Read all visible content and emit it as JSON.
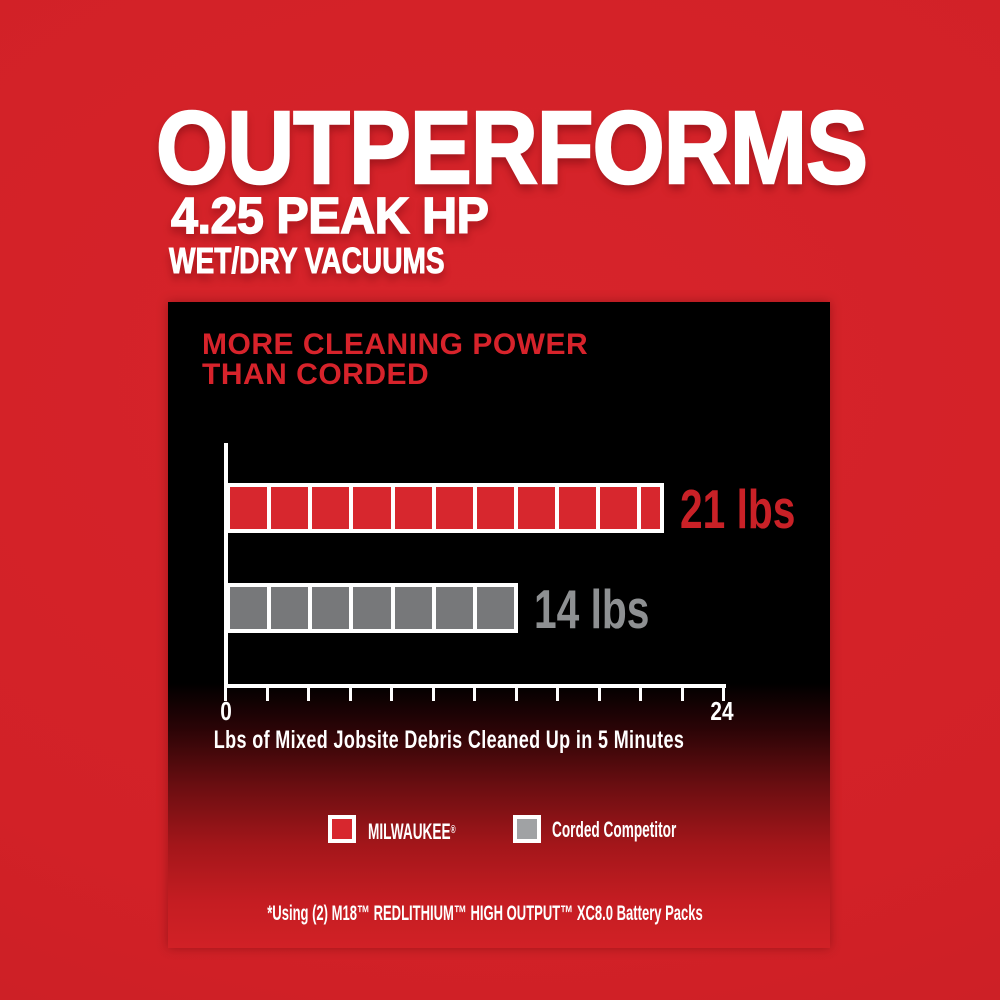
{
  "header": {
    "headline": "OUTPERFORMS",
    "subheadline": "4.25 PEAK HP",
    "subheadline2": "WET/DRY VACUUMS"
  },
  "panel": {
    "heading_line1": "MORE CLEANING POWER",
    "heading_line2": "THAN CORDED"
  },
  "chart_data": {
    "type": "bar",
    "orientation": "horizontal",
    "title": "MORE CLEANING POWER THAN CORDED",
    "categories": [
      "MILWAUKEE®",
      "Corded Competitor"
    ],
    "values": [
      21,
      14
    ],
    "value_labels": [
      "21 lbs",
      "14 lbs"
    ],
    "units": "lbs",
    "xlabel": "Lbs of Mixed Jobsite Debris Cleaned Up in 5 Minutes",
    "xlim": [
      0,
      24
    ],
    "xtick_step": 2,
    "visible_tick_labels": [
      "0",
      "24"
    ],
    "lbs_per_segment": 2,
    "bar_colors": [
      "#d7272e",
      "#77787a"
    ],
    "value_label_colors": [
      "#c92127",
      "#8e9092"
    ],
    "grid": false,
    "legend_position": "bottom"
  },
  "legend": {
    "items": [
      {
        "label": "MILWAUKEE",
        "mark": "®",
        "swatch_color": "#d7272e"
      },
      {
        "label": "Corded Competitor",
        "mark": "",
        "swatch_color": "#a0a2a4"
      }
    ]
  },
  "footnote": "*Using (2) M18™ REDLITHIUM™ HIGH OUTPUT™ XC8.0 Battery Packs",
  "colors": {
    "background_red": "#d7242b",
    "panel_black": "#000000",
    "panel_fade_red": "#d12126",
    "heading_red": "#d7232b",
    "text_white": "#ffffff"
  }
}
